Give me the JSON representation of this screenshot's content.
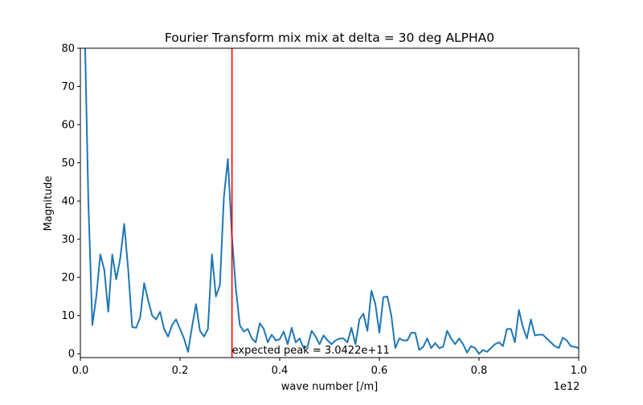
{
  "chart_data": {
    "type": "line",
    "title": "Fourier Transform mix mix at delta = 30 deg ALPHA0",
    "x_label": "wave number [/m]",
    "y_label": "Magnitude",
    "x_offset_label": "1e12",
    "x": [
      0.008,
      0.016,
      0.024,
      0.032,
      0.04,
      0.048,
      0.056,
      0.064,
      0.072,
      0.08,
      0.088,
      0.096,
      0.104,
      0.112,
      0.12,
      0.128,
      0.136,
      0.144,
      0.152,
      0.16,
      0.168,
      0.176,
      0.184,
      0.192,
      0.2,
      0.208,
      0.216,
      0.224,
      0.232,
      0.24,
      0.248,
      0.256,
      0.264,
      0.272,
      0.28,
      0.288,
      0.296,
      0.304,
      0.312,
      0.32,
      0.328,
      0.336,
      0.344,
      0.352,
      0.36,
      0.368,
      0.376,
      0.384,
      0.392,
      0.4,
      0.408,
      0.416,
      0.424,
      0.432,
      0.44,
      0.448,
      0.456,
      0.464,
      0.472,
      0.48,
      0.488,
      0.496,
      0.504,
      0.512,
      0.52,
      0.528,
      0.536,
      0.544,
      0.552,
      0.56,
      0.568,
      0.576,
      0.584,
      0.592,
      0.6,
      0.608,
      0.616,
      0.624,
      0.632,
      0.64,
      0.648,
      0.656,
      0.664,
      0.672,
      0.68,
      0.688,
      0.696,
      0.704,
      0.712,
      0.72,
      0.728,
      0.736,
      0.744,
      0.752,
      0.76,
      0.768,
      0.776,
      0.784,
      0.792,
      0.8,
      0.808,
      0.816,
      0.824,
      0.832,
      0.84,
      0.848,
      0.856,
      0.864,
      0.872,
      0.88,
      0.888,
      0.896,
      0.904,
      0.912,
      0.92,
      0.928,
      0.936,
      0.944,
      0.952,
      0.96,
      0.968,
      0.976,
      0.984,
      0.992,
      1.0
    ],
    "series": [
      {
        "color": "#1f77b4",
        "values": [
          90,
          40,
          7.5,
          15,
          26,
          22,
          11,
          26,
          19.5,
          25,
          34,
          22,
          7,
          6.8,
          9.5,
          18.5,
          14,
          10,
          9,
          11,
          6.5,
          4.5,
          7.5,
          9,
          6.5,
          4,
          0.5,
          7,
          13,
          6,
          4.5,
          6.5,
          26,
          15,
          18,
          41,
          51,
          31,
          17,
          7.5,
          5.8,
          6.5,
          4,
          3,
          8,
          6.5,
          3,
          5,
          3.5,
          3.8,
          5.8,
          2.5,
          6.8,
          3,
          4,
          1.5,
          2,
          6,
          4.5,
          2.5,
          4.8,
          3.5,
          2.5,
          3.5,
          4,
          4,
          3,
          6.8,
          2.5,
          9,
          10.5,
          6,
          16.5,
          13,
          5.5,
          14.8,
          15,
          10,
          1.5,
          4,
          3.5,
          3.5,
          5.5,
          5.5,
          1,
          1.8,
          4,
          1.5,
          2.8,
          1.5,
          1.8,
          6,
          4,
          2.5,
          4,
          2.5,
          0.3,
          2,
          1.5,
          0,
          1,
          0.5,
          1.5,
          2.5,
          3,
          2,
          6.5,
          6.5,
          3,
          11.5,
          7,
          4,
          9,
          4.8,
          5,
          5,
          4,
          3,
          2,
          1.5,
          4.2,
          3.5,
          2,
          1.8,
          1.5
        ]
      }
    ],
    "vline": {
      "x": 0.30422,
      "label": "expected peak = 3.0422e+11",
      "color": "red"
    },
    "xlim": [
      0,
      1
    ],
    "ylim": [
      -1,
      80
    ],
    "xticks": [
      {
        "value": 0,
        "label": "0.0"
      },
      0.2,
      0.4,
      0.6,
      0.8,
      {
        "value": 1,
        "label": "1.0"
      }
    ],
    "yticks": [
      0,
      10,
      20,
      30,
      40,
      50,
      60,
      70,
      80
    ]
  }
}
